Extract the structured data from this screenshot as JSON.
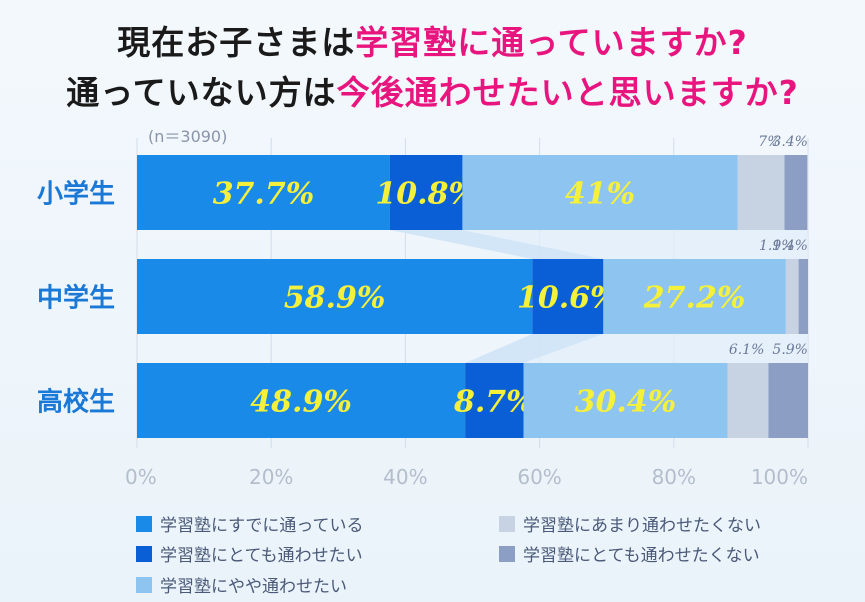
{
  "title": {
    "line1_pre": "現在お子さまは",
    "line1_hl": "学習塾に通っていますか?",
    "line2_pre": "通っていない方は",
    "line2_hl": "今後通わせたいと思いますか?"
  },
  "colors": {
    "title_highlight": "#e8157f",
    "category_label": "#1a78d6",
    "value_label": "#f5f03c",
    "small_value_label": "#6b7a99"
  },
  "chart_data": {
    "type": "bar",
    "orientation": "horizontal",
    "stacked": true,
    "percent": true,
    "note": "(n＝3090)",
    "categories": [
      "小学生",
      "中学生",
      "高校生"
    ],
    "xlim": [
      0,
      100
    ],
    "x_ticks": [
      "0%",
      "20%",
      "40%",
      "60%",
      "80%",
      "100%"
    ],
    "legend_position": "bottom",
    "series": [
      {
        "name": "学習塾にすでに通っている",
        "color": "#1a8ae8",
        "values": [
          37.7,
          58.9,
          48.9
        ]
      },
      {
        "name": "学習塾にとても通わせたい",
        "color": "#0b5fd6",
        "values": [
          10.8,
          10.6,
          8.7
        ]
      },
      {
        "name": "学習塾にやや通わせたい",
        "color": "#8ec4f0",
        "values": [
          41,
          27.2,
          30.4
        ]
      },
      {
        "name": "学習塾にあまり通わせたくない",
        "color": "#c7d2e2",
        "values": [
          7,
          1.9,
          6.1
        ]
      },
      {
        "name": "学習塾にとても通わせたくない",
        "color": "#8c9ec4",
        "values": [
          3.4,
          1.4,
          5.9
        ]
      }
    ]
  }
}
